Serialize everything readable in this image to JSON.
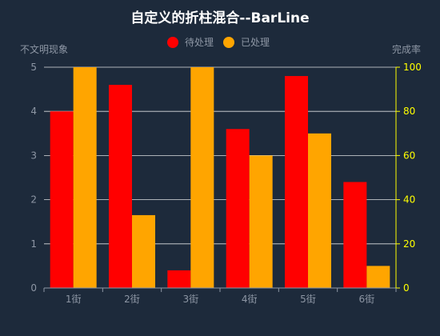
{
  "chart_data": {
    "type": "bar",
    "title": "自定义的折柱混合--BarLine",
    "categories": [
      "1街",
      "2街",
      "3街",
      "4街",
      "5街",
      "6街"
    ],
    "legend_placement": "top-center",
    "grid": true,
    "y_left": {
      "label": "不文明现象",
      "range": [
        0,
        5
      ],
      "ticks": [
        "0",
        "1",
        "2",
        "3",
        "4",
        "5"
      ]
    },
    "y_right": {
      "label": "完成率",
      "range": [
        0,
        100
      ],
      "ticks": [
        "0",
        "20",
        "40",
        "60",
        "80",
        "100"
      ]
    },
    "series": [
      {
        "name": "待处理",
        "axis": "left",
        "color": "#ff0000",
        "values": [
          4.0,
          4.6,
          0.4,
          3.6,
          4.8,
          2.4
        ]
      },
      {
        "name": "已处理",
        "axis": "right",
        "color": "#ffa500",
        "values": [
          100,
          33,
          100,
          60,
          70,
          10
        ]
      }
    ],
    "colors": {
      "background": "#1d2a3b",
      "title": "#ffffff",
      "axis_text": "#8d96a4",
      "right_tick_text": "#ffff00",
      "grid": "#ffffff"
    }
  }
}
